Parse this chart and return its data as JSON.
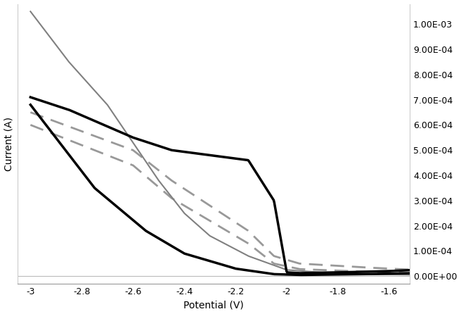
{
  "title": "",
  "xlabel": "Potential (V)",
  "ylabel": "Current (A)",
  "xlim": [
    -3.05,
    -1.52
  ],
  "ylim": [
    -3e-05,
    0.00108
  ],
  "xticks": [
    -3.0,
    -2.8,
    -2.6,
    -2.4,
    -2.2,
    -2.0,
    -1.8,
    -1.6
  ],
  "xtick_labels": [
    "-3",
    "-2.8",
    "-2.6",
    "-2.4",
    "-2.2",
    "-2",
    "-1.8",
    "-1.6"
  ],
  "yticks": [
    0.0,
    0.0001,
    0.0002,
    0.0003,
    0.0004,
    0.0005,
    0.0006,
    0.0007,
    0.0008,
    0.0009,
    0.001
  ],
  "ytick_labels": [
    "0.00E+00",
    "1.00E-04",
    "2.00E-04",
    "3.00E-04",
    "4.00E-04",
    "5.00E-04",
    "6.00E-04",
    "7.00E-04",
    "8.00E-04",
    "9.00E-04",
    "1.00E-03"
  ],
  "bg_color": "#ffffff",
  "line_color_black": "#000000",
  "line_color_gray_solid": "#808080",
  "line_color_dashed": "#999999",
  "line_color_baseline": "#bbbbbb"
}
